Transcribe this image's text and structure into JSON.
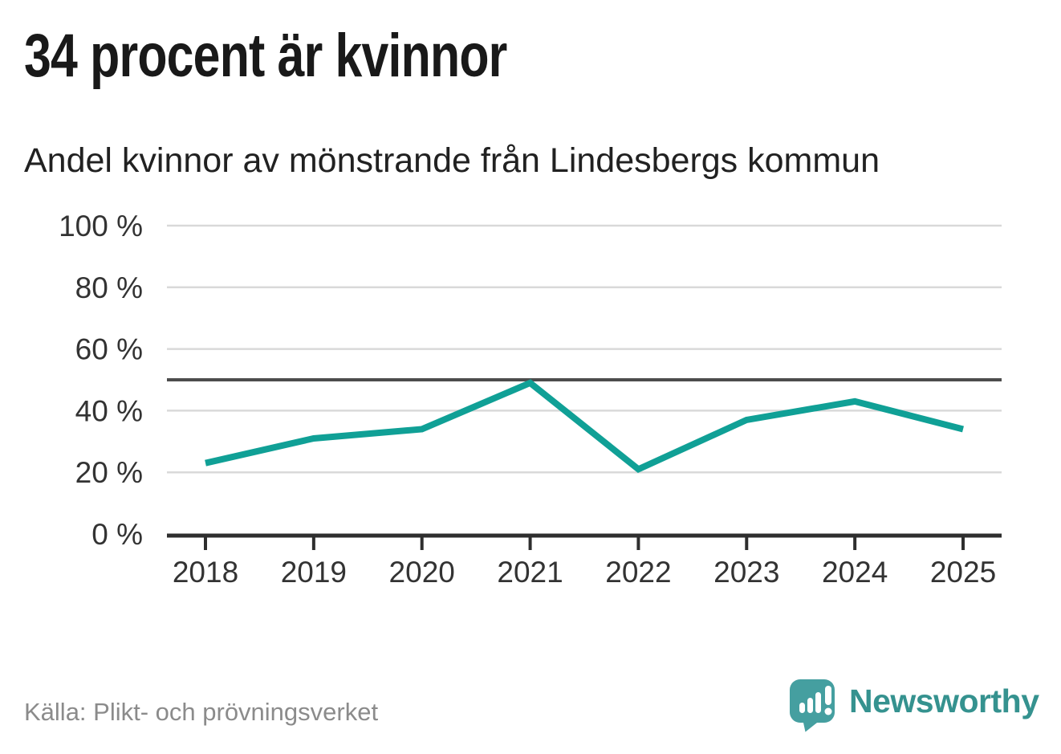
{
  "title": "34 procent är kvinnor",
  "subtitle": "Andel kvinnor av mönstrande från Lindesbergs kommun",
  "source": "Källa: Plikt- och prövningsverket",
  "brand": {
    "name": "Newsworthy"
  },
  "colors": {
    "line": "#10A096",
    "gridline": "#D9D9D9",
    "reference_line": "#4D4D4D",
    "axis": "#2E2E2E",
    "tick_text": "#333333",
    "title_text": "#191919",
    "subtitle_text": "#212121",
    "source_text": "#8B8B8B",
    "brand_icon": "#459FA0",
    "brand_text": "#35928F"
  },
  "chart_data": {
    "type": "line",
    "title": "34 procent är kvinnor",
    "subtitle": "Andel kvinnor av mönstrande från Lindesbergs kommun",
    "x": [
      2018,
      2019,
      2020,
      2021,
      2022,
      2023,
      2024,
      2025
    ],
    "series": [
      {
        "name": "Andel kvinnor av mönstrande",
        "values": [
          23,
          31,
          34,
          49,
          21,
          37,
          43,
          34
        ]
      }
    ],
    "xlabel": "",
    "ylabel": "",
    "ylim": [
      0,
      100
    ],
    "yticks": [
      0,
      20,
      40,
      60,
      80,
      100
    ],
    "ytick_format": "{v} %",
    "reference_line": 50,
    "grid": true,
    "legend": false
  }
}
